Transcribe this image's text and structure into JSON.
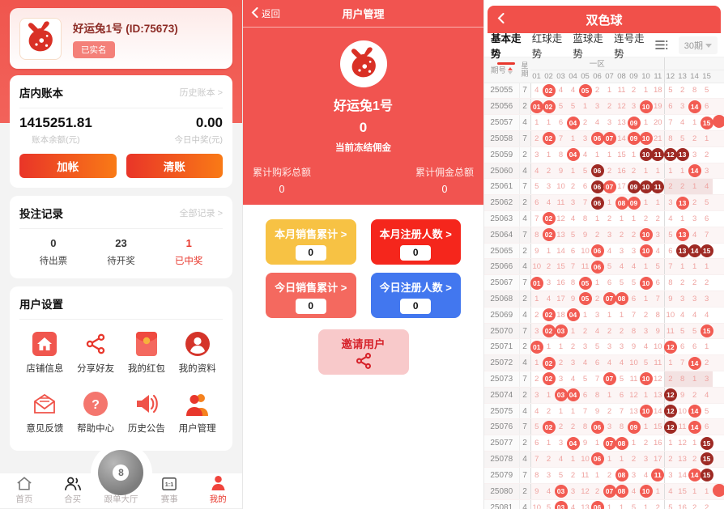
{
  "colors": {
    "accent_red": "#e8372c",
    "panel_red": "#f15450",
    "ball_light": "#f25b52",
    "ball_dark": "#9e2a24",
    "btn_gradient_from": "#e93528",
    "btn_gradient_to": "#f97a16"
  },
  "left_panel": {
    "user_card": {
      "name": "好运兔1号 (ID:75673)",
      "badge": "已实名",
      "avatar_icon": "rabbit-icon"
    },
    "ledger": {
      "title": "店内账本",
      "history_link": "历史账本 >",
      "balance": "1415251.81",
      "balance_label": "账本余额(元)",
      "today_win": "0.00",
      "today_win_label": "今日中奖(元)",
      "add_button": "加帐",
      "clear_button": "清账"
    },
    "bets": {
      "title": "投注记录",
      "all_link": "全部记录 >",
      "stats": [
        {
          "value": "0",
          "label": "待出票",
          "highlight": false
        },
        {
          "value": "23",
          "label": "待开奖",
          "highlight": false
        },
        {
          "value": "1",
          "label": "已中奖",
          "highlight": true
        }
      ]
    },
    "settings": {
      "title": "用户设置",
      "items": [
        {
          "label": "店铺信息",
          "icon": "shop-home-icon"
        },
        {
          "label": "分享好友",
          "icon": "share-icon"
        },
        {
          "label": "我的红包",
          "icon": "red-packet-icon"
        },
        {
          "label": "我的资料",
          "icon": "profile-icon"
        },
        {
          "label": "意见反馈",
          "icon": "feedback-icon"
        },
        {
          "label": "帮助中心",
          "icon": "help-icon"
        },
        {
          "label": "历史公告",
          "icon": "announcement-icon"
        },
        {
          "label": "用户管理",
          "icon": "user-manage-icon"
        }
      ]
    },
    "nav": [
      {
        "label": "首页",
        "icon": "home-icon",
        "active": false
      },
      {
        "label": "合买",
        "icon": "group-icon",
        "active": false
      },
      {
        "label": "跟单大厅",
        "icon": "eight-ball-icon",
        "active": false,
        "center": true
      },
      {
        "label": "赛事",
        "icon": "match-icon",
        "active": false
      },
      {
        "label": "我的",
        "icon": "person-icon",
        "active": true
      }
    ]
  },
  "middle_panel": {
    "header": {
      "back_label": "返回",
      "title": "用户管理"
    },
    "profile": {
      "avatar_icon": "rabbit-icon",
      "name": "好运兔1号",
      "frozen_value": "0",
      "frozen_label": "当前冻结佣金",
      "totals": [
        {
          "label": "累计购彩总额",
          "value": "0"
        },
        {
          "label": "累计佣金总额",
          "value": "0"
        }
      ]
    },
    "stat_cards": [
      {
        "label": "本月销售累计 >",
        "value": "0",
        "color": "#f7c244"
      },
      {
        "label": "本月注册人数 >",
        "value": "0",
        "color": "#f5261c"
      },
      {
        "label": "今日销售累计 >",
        "value": "0",
        "color": "#f4695f"
      },
      {
        "label": "今日注册人数 >",
        "value": "0",
        "color": "#4277ef"
      }
    ],
    "invite": {
      "label": "邀请用户",
      "icon": "share-icon"
    }
  },
  "right_panel": {
    "header": {
      "title": "双色球"
    },
    "tabs": [
      {
        "label": "基本走势",
        "active": true
      },
      {
        "label": "红球走势",
        "active": false
      },
      {
        "label": "蓝球走势",
        "active": false
      },
      {
        "label": "连号走势",
        "active": false
      }
    ],
    "filter_icon": "list-filter-icon",
    "period_select": "30期",
    "trend": {
      "issue_header": "期号",
      "week_header_top": "星",
      "week_header_bottom": "期",
      "zone1_header": "一区",
      "columns": [
        "01",
        "02",
        "03",
        "04",
        "05",
        "06",
        "07",
        "08",
        "09",
        "10",
        "11",
        "12",
        "13",
        "14",
        "15"
      ],
      "legend_note": "cells: plain = miss count, L## = light red ball, D## = dark repeat ball",
      "rows": [
        {
          "i": "25055",
          "w": "7",
          "c": [
            "4",
            "L02",
            "4",
            "4",
            "L05",
            "2",
            "1",
            "11",
            "2",
            "1",
            "18",
            "5",
            "2",
            "8",
            "5",
            ""
          ]
        },
        {
          "i": "25056",
          "w": "2",
          "c": [
            "L01",
            "L02",
            "5",
            "5",
            "1",
            "3",
            "2",
            "12",
            "3",
            "L10",
            "19",
            "6",
            "3",
            "L14",
            "6",
            ""
          ]
        },
        {
          "i": "25057",
          "w": "4",
          "c": [
            "1",
            "1",
            "6",
            "L04",
            "2",
            "4",
            "3",
            "13",
            "L09",
            "1",
            "20",
            "7",
            "4",
            "1",
            "L15",
            "L"
          ]
        },
        {
          "i": "25058",
          "w": "7",
          "c": [
            "2",
            "L02",
            "7",
            "1",
            "3",
            "L06",
            "L07",
            "14",
            "L09",
            "L10",
            "21",
            "8",
            "5",
            "2",
            "1",
            ""
          ]
        },
        {
          "i": "25059",
          "w": "2",
          "c": [
            "3",
            "1",
            "8",
            "L04",
            "4",
            "1",
            "1",
            "15",
            "1",
            "D10",
            "D11",
            "D12",
            "D13",
            "3",
            "2",
            ""
          ]
        },
        {
          "i": "25060",
          "w": "4",
          "c": [
            "4",
            "2",
            "9",
            "1",
            "5",
            "D06",
            "2",
            "16",
            "2",
            "1",
            "1",
            "1",
            "1",
            "L14",
            "3",
            ""
          ]
        },
        {
          "i": "25061",
          "w": "7",
          "c": [
            "5",
            "3",
            "10",
            "2",
            "6",
            "D06",
            "L07",
            "17",
            "D09",
            "D10",
            "D11",
            "2",
            "2",
            "1",
            "4",
            ""
          ],
          "rt": true
        },
        {
          "i": "25062",
          "w": "2",
          "c": [
            "6",
            "4",
            "11",
            "3",
            "7",
            "D06",
            "1",
            "L08",
            "L09",
            "1",
            "1",
            "3",
            "L13",
            "2",
            "5",
            ""
          ]
        },
        {
          "i": "25063",
          "w": "4",
          "c": [
            "7",
            "L02",
            "12",
            "4",
            "8",
            "1",
            "2",
            "1",
            "1",
            "2",
            "2",
            "4",
            "1",
            "3",
            "6",
            ""
          ]
        },
        {
          "i": "25064",
          "w": "7",
          "c": [
            "8",
            "L02",
            "13",
            "5",
            "9",
            "2",
            "3",
            "2",
            "2",
            "L10",
            "3",
            "5",
            "L13",
            "4",
            "7",
            ""
          ]
        },
        {
          "i": "25065",
          "w": "2",
          "c": [
            "9",
            "1",
            "14",
            "6",
            "10",
            "L06",
            "4",
            "3",
            "3",
            "L10",
            "4",
            "6",
            "D13",
            "D14",
            "D15",
            ""
          ]
        },
        {
          "i": "25066",
          "w": "4",
          "c": [
            "10",
            "2",
            "15",
            "7",
            "11",
            "L06",
            "5",
            "4",
            "4",
            "1",
            "5",
            "7",
            "1",
            "1",
            "1",
            ""
          ]
        },
        {
          "i": "25067",
          "w": "7",
          "c": [
            "L01",
            "3",
            "16",
            "8",
            "L05",
            "1",
            "6",
            "5",
            "5",
            "L10",
            "6",
            "8",
            "2",
            "2",
            "2",
            ""
          ]
        },
        {
          "i": "25068",
          "w": "2",
          "c": [
            "1",
            "4",
            "17",
            "9",
            "L05",
            "2",
            "L07",
            "L08",
            "6",
            "1",
            "7",
            "9",
            "3",
            "3",
            "3",
            ""
          ]
        },
        {
          "i": "25069",
          "w": "4",
          "c": [
            "2",
            "L02",
            "18",
            "L04",
            "1",
            "3",
            "1",
            "1",
            "7",
            "2",
            "8",
            "10",
            "4",
            "4",
            "4",
            ""
          ]
        },
        {
          "i": "25070",
          "w": "7",
          "c": [
            "3",
            "L02",
            "L03",
            "1",
            "2",
            "4",
            "2",
            "2",
            "8",
            "3",
            "9",
            "11",
            "5",
            "5",
            "L15",
            ""
          ]
        },
        {
          "i": "25071",
          "w": "2",
          "c": [
            "L01",
            "1",
            "1",
            "2",
            "3",
            "5",
            "3",
            "3",
            "9",
            "4",
            "10",
            "L12",
            "6",
            "6",
            "1",
            ""
          ]
        },
        {
          "i": "25072",
          "w": "4",
          "c": [
            "1",
            "L02",
            "2",
            "3",
            "4",
            "6",
            "4",
            "4",
            "10",
            "5",
            "11",
            "1",
            "7",
            "L14",
            "2",
            ""
          ]
        },
        {
          "i": "25073",
          "w": "7",
          "c": [
            "2",
            "L02",
            "3",
            "4",
            "5",
            "7",
            "L07",
            "5",
            "11",
            "L10",
            "12",
            "2",
            "8",
            "1",
            "3",
            ""
          ],
          "rt": true
        },
        {
          "i": "25074",
          "w": "2",
          "c": [
            "3",
            "1",
            "L03",
            "L04",
            "6",
            "8",
            "1",
            "6",
            "12",
            "1",
            "13",
            "D12",
            "9",
            "2",
            "4",
            ""
          ]
        },
        {
          "i": "25075",
          "w": "4",
          "c": [
            "4",
            "2",
            "1",
            "1",
            "7",
            "9",
            "2",
            "7",
            "13",
            "L10",
            "14",
            "D12",
            "10",
            "L14",
            "5",
            ""
          ]
        },
        {
          "i": "25076",
          "w": "7",
          "c": [
            "5",
            "L02",
            "2",
            "2",
            "8",
            "L06",
            "3",
            "8",
            "L09",
            "1",
            "15",
            "D12",
            "11",
            "L14",
            "6",
            ""
          ]
        },
        {
          "i": "25077",
          "w": "2",
          "c": [
            "6",
            "1",
            "3",
            "L04",
            "9",
            "1",
            "L07",
            "L08",
            "1",
            "2",
            "16",
            "1",
            "12",
            "1",
            "D15",
            ""
          ]
        },
        {
          "i": "25078",
          "w": "4",
          "c": [
            "7",
            "2",
            "4",
            "1",
            "10",
            "L06",
            "1",
            "1",
            "2",
            "3",
            "17",
            "2",
            "13",
            "2",
            "D15",
            ""
          ]
        },
        {
          "i": "25079",
          "w": "7",
          "c": [
            "8",
            "3",
            "5",
            "2",
            "11",
            "1",
            "2",
            "L08",
            "3",
            "4",
            "L11",
            "3",
            "14",
            "L14",
            "D15",
            ""
          ]
        },
        {
          "i": "25080",
          "w": "2",
          "c": [
            "9",
            "4",
            "L03",
            "3",
            "12",
            "2",
            "L07",
            "L08",
            "4",
            "L10",
            "1",
            "4",
            "15",
            "1",
            "1",
            "L"
          ]
        },
        {
          "i": "25081",
          "w": "4",
          "c": [
            "10",
            "5",
            "L03",
            "4",
            "13",
            "L06",
            "1",
            "1",
            "5",
            "1",
            "2",
            "5",
            "16",
            "2",
            "2",
            ""
          ]
        }
      ]
    }
  }
}
